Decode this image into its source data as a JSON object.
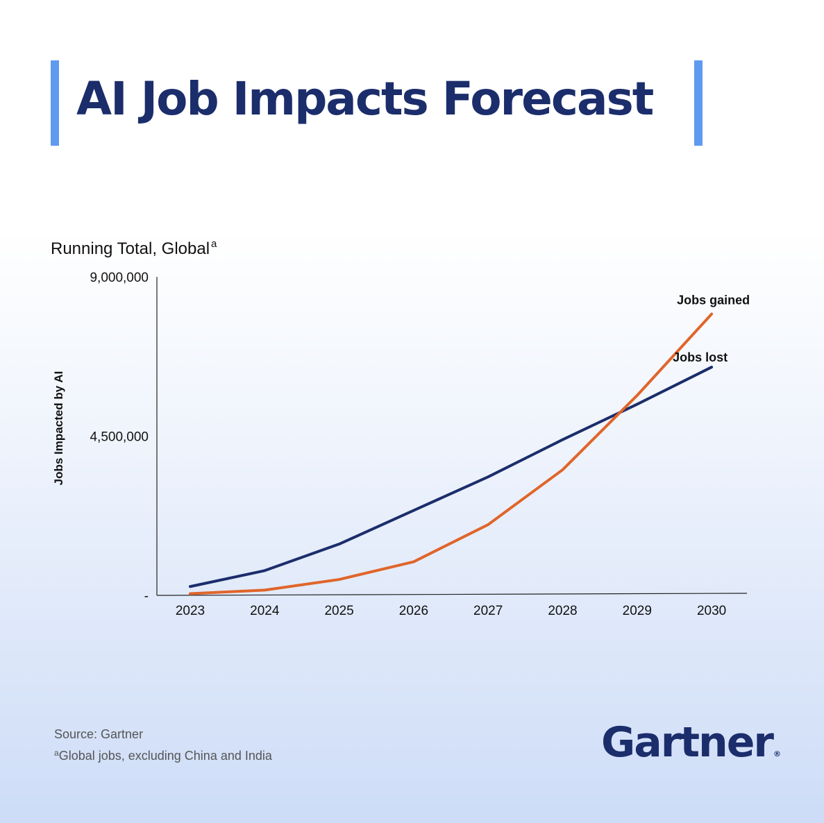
{
  "title": "AI Job Impacts Forecast",
  "subtitle": "Running Total, Global",
  "subtitle_marker": "a",
  "footnotes": {
    "source": "Source: Gartner",
    "marker": "a",
    "note": "Global jobs, excluding China and India"
  },
  "logo": {
    "text": "Gartner",
    "mark": "®"
  },
  "colors": {
    "title": "#1b2d6b",
    "accent_bar": "#5f9af0",
    "jobs_lost": "#1b2d6b",
    "jobs_gained": "#e0652a"
  },
  "chart_data": {
    "type": "line",
    "title": "Running Total, Global",
    "xlabel": "",
    "ylabel": "Jobs Impacted by AI",
    "x": [
      "2023",
      "2024",
      "2025",
      "2026",
      "2027",
      "2028",
      "2029",
      "2030"
    ],
    "ylim": [
      0,
      9000000
    ],
    "yticks": [
      0,
      4500000,
      9000000
    ],
    "ytick_labels": [
      "-",
      "4,500,000",
      "9,000,000"
    ],
    "grid": false,
    "legend": "inline labels at series ends",
    "series": [
      {
        "name": "Jobs lost",
        "color": "#1b2d6b",
        "values": [
          250000,
          700000,
          1450000,
          2400000,
          3350000,
          4400000,
          5400000,
          6450000
        ]
      },
      {
        "name": "Jobs gained",
        "color": "#e0652a",
        "values": [
          50000,
          150000,
          450000,
          950000,
          2000000,
          3550000,
          5650000,
          7950000
        ]
      }
    ]
  }
}
